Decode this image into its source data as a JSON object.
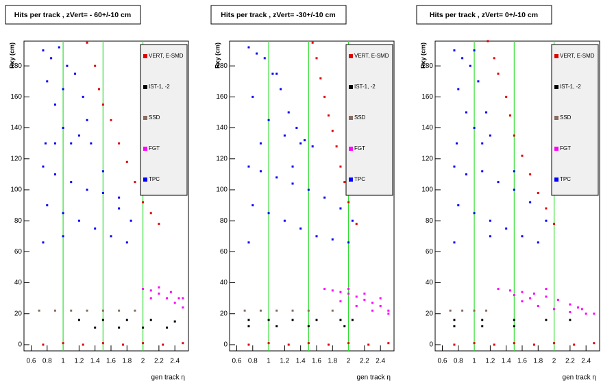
{
  "chart_data": [
    {
      "type": "scatter",
      "title": "Hits per track , zVert= - 60+/-10 cm",
      "xlabel": "gen track η",
      "ylabel": "Rxy  (cm)",
      "xlim": [
        0.51,
        2.57
      ],
      "ylim": [
        -4,
        196
      ],
      "xticks": [
        0.6,
        0.8,
        1,
        1.2,
        1.4,
        1.6,
        1.8,
        2,
        2.2,
        2.4
      ],
      "yticks": [
        0,
        20,
        40,
        60,
        80,
        100,
        120,
        140,
        160,
        180
      ],
      "vlines": [
        1,
        1.5,
        2
      ],
      "vline_color": "#33dd33",
      "series": [
        {
          "name": "VERT, E-SMD",
          "color": "#e00000",
          "x": [
            1.3,
            1.4,
            1.45,
            1.5,
            1.6,
            1.7,
            1.8,
            1.9,
            2.0,
            2.1,
            2.2,
            0.75,
            1.0,
            1.25,
            1.5,
            1.75,
            2.0,
            2.25,
            2.5
          ],
          "y": [
            195,
            180,
            165,
            155,
            145,
            130,
            118,
            105,
            92,
            85,
            78,
            0,
            1,
            0,
            1,
            0,
            1,
            0,
            1
          ]
        },
        {
          "name": "IST-1, -2",
          "color": "#000000",
          "x": [
            1.2,
            1.5,
            1.8,
            2.1,
            2.4,
            1.4,
            1.7,
            2.0,
            2.3
          ],
          "y": [
            16,
            16,
            16,
            16,
            15,
            11,
            11,
            11,
            11
          ]
        },
        {
          "name": "SSD",
          "color": "#8b6b5f",
          "x": [
            0.7,
            0.9,
            1.1,
            1.3,
            1.5,
            1.7,
            1.9
          ],
          "y": [
            22,
            22,
            22,
            22,
            22,
            22,
            22
          ]
        },
        {
          "name": "FGT",
          "color": "#ff00ff",
          "x": [
            2.0,
            2.1,
            2.2,
            2.3,
            2.4,
            2.5,
            2.2,
            2.35,
            2.45,
            2.1,
            2.5
          ],
          "y": [
            36,
            35,
            33,
            30,
            27,
            24,
            37,
            34,
            30,
            30,
            30
          ]
        },
        {
          "name": "TPC",
          "color": "#0000ff",
          "x": [
            0.75,
            0.85,
            0.95,
            1.05,
            1.15,
            1.25,
            1.3,
            0.8,
            0.9,
            1.0,
            1.1,
            1.2,
            0.78,
            1.0,
            0.9,
            1.35,
            0.75,
            0.9,
            1.1,
            1.3,
            1.5,
            1.7,
            1.85,
            0.8,
            1.0,
            1.2,
            1.4,
            1.6,
            1.8,
            0.75,
            1.0,
            1.5,
            1.7
          ],
          "y": [
            190,
            185,
            192,
            180,
            175,
            160,
            145,
            170,
            155,
            140,
            130,
            135,
            130,
            165,
            130,
            130,
            115,
            110,
            105,
            100,
            98,
            95,
            80,
            90,
            85,
            80,
            75,
            70,
            66,
            66,
            70,
            112,
            88
          ]
        }
      ]
    },
    {
      "type": "scatter",
      "title": "Hits per track , zVert= -30+/-10 cm",
      "xlabel": "gen track η",
      "ylabel": "Rxy  (cm)",
      "xlim": [
        0.51,
        2.57
      ],
      "ylim": [
        -4,
        196
      ],
      "xticks": [
        0.6,
        0.8,
        1,
        1.2,
        1.4,
        1.6,
        1.8,
        2,
        2.2,
        2.4
      ],
      "yticks": [
        0,
        20,
        40,
        60,
        80,
        100,
        120,
        140,
        160,
        180
      ],
      "vlines": [
        1,
        1.5,
        2
      ],
      "vline_color": "#33dd33",
      "series": [
        {
          "name": "VERT, E-SMD",
          "color": "#e00000",
          "x": [
            1.55,
            1.6,
            1.65,
            1.7,
            1.75,
            1.8,
            1.85,
            1.9,
            1.95,
            2.0,
            2.1,
            0.75,
            1.0,
            1.25,
            1.5,
            1.75,
            2.0,
            2.25,
            2.5
          ],
          "y": [
            195,
            185,
            172,
            160,
            148,
            138,
            128,
            115,
            105,
            92,
            78,
            0,
            1,
            0,
            1,
            0,
            1,
            0,
            1
          ]
        },
        {
          "name": "IST-1, -2",
          "color": "#000000",
          "x": [
            0.75,
            1.0,
            1.3,
            1.6,
            1.9,
            2.05,
            0.75,
            1.1,
            1.5,
            1.95
          ],
          "y": [
            16,
            16,
            16,
            16,
            16,
            16,
            12,
            12,
            12,
            12
          ]
        },
        {
          "name": "SSD",
          "color": "#8b6b5f",
          "x": [
            0.7,
            0.9,
            1.1,
            1.3,
            1.5,
            1.8
          ],
          "y": [
            22,
            22,
            22,
            22,
            22,
            22
          ]
        },
        {
          "name": "FGT",
          "color": "#ff00ff",
          "x": [
            1.7,
            1.8,
            1.9,
            2.0,
            2.1,
            2.2,
            2.3,
            2.4,
            2.5,
            1.9,
            2.1,
            2.3,
            2.5,
            2.0,
            2.2,
            2.4
          ],
          "y": [
            36,
            35,
            34,
            33,
            31,
            29,
            27,
            25,
            22,
            28,
            25,
            22,
            20,
            36,
            33,
            30
          ]
        },
        {
          "name": "TPC",
          "color": "#0000ff",
          "x": [
            0.75,
            0.85,
            0.95,
            1.05,
            1.15,
            1.25,
            1.35,
            1.45,
            1.55,
            0.8,
            1.0,
            1.2,
            1.4,
            0.9,
            1.1,
            0.75,
            0.9,
            1.1,
            1.3,
            1.5,
            1.7,
            1.9,
            2.05,
            0.8,
            1.0,
            1.2,
            1.4,
            1.6,
            1.8,
            2.0,
            0.75,
            1.3
          ],
          "y": [
            192,
            188,
            185,
            175,
            165,
            150,
            140,
            132,
            128,
            160,
            145,
            135,
            130,
            130,
            175,
            115,
            112,
            108,
            104,
            100,
            95,
            88,
            80,
            90,
            85,
            80,
            75,
            70,
            68,
            66,
            66,
            115
          ]
        }
      ]
    },
    {
      "type": "scatter",
      "title": "Hits per track , zVert= 0+/-10 cm",
      "xlabel": "gen track η",
      "ylabel": "Rxy  (cm)",
      "xlim": [
        0.51,
        2.57
      ],
      "ylim": [
        -4,
        196
      ],
      "xticks": [
        0.6,
        0.8,
        1,
        1.2,
        1.4,
        1.6,
        1.8,
        2,
        2.2,
        2.4
      ],
      "yticks": [
        0,
        20,
        40,
        60,
        80,
        100,
        120,
        140,
        160,
        180
      ],
      "vlines": [
        1,
        1.5,
        2
      ],
      "vline_color": "#33dd33",
      "series": [
        {
          "name": "VERT, E-SMD",
          "color": "#e00000",
          "x": [
            1.17,
            1.25,
            1.3,
            1.4,
            1.45,
            1.5,
            1.6,
            1.7,
            1.8,
            1.9,
            2.0,
            0.75,
            1.0,
            1.25,
            1.5,
            1.75,
            2.0,
            2.25,
            2.5
          ],
          "y": [
            196,
            185,
            175,
            160,
            148,
            135,
            122,
            110,
            98,
            88,
            78,
            0,
            1,
            0,
            1,
            0,
            1,
            0,
            1
          ]
        },
        {
          "name": "IST-1, -2",
          "color": "#000000",
          "x": [
            0.75,
            1.1,
            1.5,
            1.9,
            2.2,
            0.75,
            1.1,
            1.5
          ],
          "y": [
            16,
            16,
            16,
            16,
            16,
            12,
            12,
            12
          ]
        },
        {
          "name": "SSD",
          "color": "#8b6b5f",
          "x": [
            0.7,
            0.85,
            1.0,
            1.15
          ],
          "y": [
            22,
            22,
            22,
            22
          ]
        },
        {
          "name": "FGT",
          "color": "#ff00ff",
          "x": [
            1.3,
            1.45,
            1.6,
            1.75,
            1.9,
            2.05,
            2.2,
            2.35,
            2.5,
            1.6,
            1.8,
            2.0,
            2.2,
            2.4,
            1.5,
            1.7,
            1.9,
            2.3
          ],
          "y": [
            36,
            35,
            34,
            33,
            31,
            29,
            26,
            23,
            20,
            28,
            25,
            23,
            21,
            20,
            32,
            30,
            36,
            24
          ]
        },
        {
          "name": "TPC",
          "color": "#0000ff",
          "x": [
            0.75,
            0.85,
            0.95,
            1.05,
            1.15,
            1.2,
            0.8,
            0.9,
            1.0,
            1.1,
            0.78,
            1.0,
            0.75,
            0.9,
            1.1,
            1.3,
            1.5,
            1.7,
            1.9,
            0.8,
            1.0,
            1.2,
            1.4,
            1.6,
            1.8,
            0.75,
            1.2,
            1.5
          ],
          "y": [
            190,
            185,
            180,
            170,
            150,
            135,
            165,
            150,
            140,
            130,
            130,
            190,
            115,
            110,
            112,
            105,
            100,
            92,
            80,
            90,
            85,
            80,
            75,
            70,
            66,
            66,
            70,
            112
          ]
        }
      ]
    }
  ]
}
